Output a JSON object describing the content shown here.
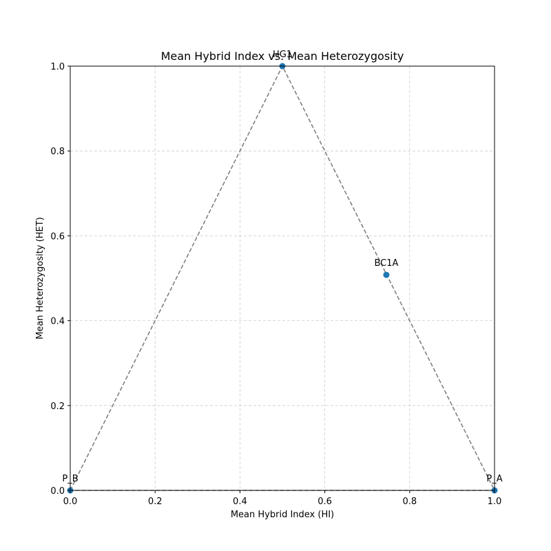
{
  "chart_data": {
    "type": "scatter",
    "title": "Mean Hybrid Index vs. Mean Heterozygosity",
    "xlabel": "Mean Hybrid Index (HI)",
    "ylabel": "Mean Heterozygosity (HET)",
    "xlim": [
      0,
      1
    ],
    "ylim": [
      0,
      1
    ],
    "xticks": [
      "0.0",
      "0.2",
      "0.4",
      "0.6",
      "0.8",
      "1.0"
    ],
    "yticks": [
      "0.0",
      "0.2",
      "0.4",
      "0.6",
      "0.8",
      "1.0"
    ],
    "grid": true,
    "points": [
      {
        "label": "P_B",
        "x": 0.0,
        "y": 0.0
      },
      {
        "label": "HG1",
        "x": 0.5,
        "y": 1.0
      },
      {
        "label": "BC1A",
        "x": 0.745,
        "y": 0.508
      },
      {
        "label": "P_A",
        "x": 1.0,
        "y": 0.0
      }
    ],
    "reference_triangle": [
      [
        0,
        0
      ],
      [
        0.5,
        1
      ],
      [
        1,
        0
      ],
      [
        0,
        0
      ]
    ],
    "colors": {
      "point": "#1f77b4",
      "reference_line": "#808080",
      "grid": "#cccccc",
      "axes": "#000000"
    }
  }
}
